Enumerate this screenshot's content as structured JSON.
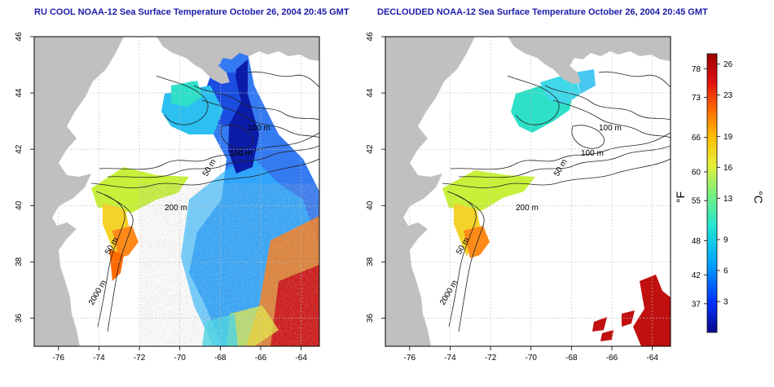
{
  "titles": {
    "left": "RU COOL NOAA-12 Sea Surface Temperature October 26, 2004 20:45 GMT",
    "right": "DECLOUDED NOAA-12 Sea Surface Temperature October 26, 2004 20:45 GMT"
  },
  "map": {
    "lon_range": [
      -77.2,
      -63.1
    ],
    "lat_range": [
      35,
      46
    ],
    "x_ticks": [
      "-76",
      "-74",
      "-72",
      "-70",
      "-68",
      "-66",
      "-64"
    ],
    "y_ticks": [
      "36",
      "38",
      "40",
      "42",
      "44",
      "46"
    ],
    "x_tick_values": [
      -76,
      -74,
      -72,
      -70,
      -68,
      -66,
      -64
    ],
    "y_tick_values": [
      36,
      38,
      40,
      42,
      44,
      46
    ],
    "colors": {
      "land": "#c0c0c0",
      "ocean": "#ffffff",
      "grid": "#bdbdbd",
      "contour": "#222222"
    },
    "contour_labels_left": [
      "100 m",
      "100 m",
      "50 m",
      "200 m",
      "50 m",
      "2000 m"
    ],
    "contour_labels_right": [
      "100 m",
      "100 m",
      "50 m",
      "200 m",
      "50 m",
      "2000 m"
    ]
  },
  "colorbar": {
    "fahrenheit_label": "°F",
    "celsius_label": "°C",
    "fahrenheit_ticks": [
      "78",
      "73",
      "66",
      "60",
      "55",
      "48",
      "42",
      "37"
    ],
    "celsius_ticks": [
      "26",
      "23",
      "19",
      "16",
      "13",
      "9",
      "6",
      "3"
    ],
    "celsius_tick_values": [
      26,
      23,
      19,
      16,
      13,
      9,
      6,
      3
    ],
    "fahrenheit_tick_values": [
      78,
      73,
      66,
      60,
      55,
      48,
      42,
      37
    ],
    "range_c": [
      0,
      27
    ],
    "gradient": [
      "#0a0a8c",
      "#0033ff",
      "#00a6ff",
      "#22e6d2",
      "#7cf07c",
      "#e6f03c",
      "#ffc000",
      "#ff6a00",
      "#e01010",
      "#9a0000"
    ]
  }
}
